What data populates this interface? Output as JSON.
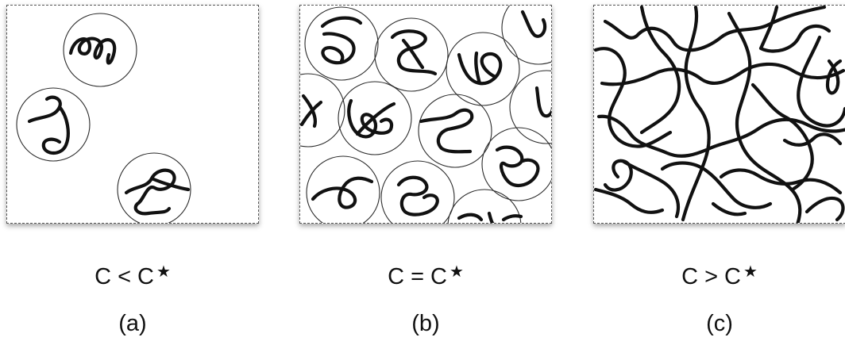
{
  "panels": [
    {
      "condition": "C < C",
      "star": "★",
      "label": "(a)"
    },
    {
      "condition": "C = C",
      "star": "★",
      "label": "(b)"
    },
    {
      "condition": "C > C",
      "star": "★",
      "label": "(c)"
    }
  ]
}
